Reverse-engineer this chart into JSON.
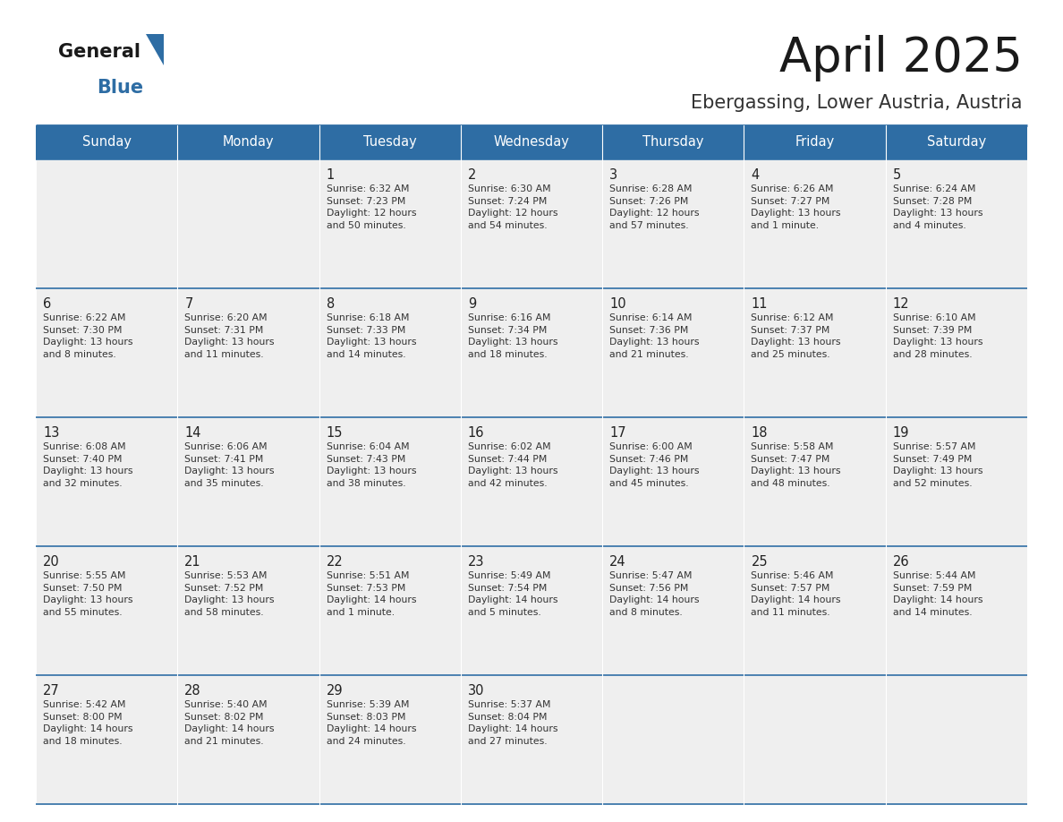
{
  "title": "April 2025",
  "subtitle": "Ebergassing, Lower Austria, Austria",
  "header_bg": "#2E6DA4",
  "header_text": "#FFFFFF",
  "cell_bg_light": "#EFEFEF",
  "text_color": "#333333",
  "line_color": "#2E6DA4",
  "day_headers": [
    "Sunday",
    "Monday",
    "Tuesday",
    "Wednesday",
    "Thursday",
    "Friday",
    "Saturday"
  ],
  "calendar": [
    [
      {
        "day": "",
        "info": ""
      },
      {
        "day": "",
        "info": ""
      },
      {
        "day": "1",
        "info": "Sunrise: 6:32 AM\nSunset: 7:23 PM\nDaylight: 12 hours\nand 50 minutes."
      },
      {
        "day": "2",
        "info": "Sunrise: 6:30 AM\nSunset: 7:24 PM\nDaylight: 12 hours\nand 54 minutes."
      },
      {
        "day": "3",
        "info": "Sunrise: 6:28 AM\nSunset: 7:26 PM\nDaylight: 12 hours\nand 57 minutes."
      },
      {
        "day": "4",
        "info": "Sunrise: 6:26 AM\nSunset: 7:27 PM\nDaylight: 13 hours\nand 1 minute."
      },
      {
        "day": "5",
        "info": "Sunrise: 6:24 AM\nSunset: 7:28 PM\nDaylight: 13 hours\nand 4 minutes."
      }
    ],
    [
      {
        "day": "6",
        "info": "Sunrise: 6:22 AM\nSunset: 7:30 PM\nDaylight: 13 hours\nand 8 minutes."
      },
      {
        "day": "7",
        "info": "Sunrise: 6:20 AM\nSunset: 7:31 PM\nDaylight: 13 hours\nand 11 minutes."
      },
      {
        "day": "8",
        "info": "Sunrise: 6:18 AM\nSunset: 7:33 PM\nDaylight: 13 hours\nand 14 minutes."
      },
      {
        "day": "9",
        "info": "Sunrise: 6:16 AM\nSunset: 7:34 PM\nDaylight: 13 hours\nand 18 minutes."
      },
      {
        "day": "10",
        "info": "Sunrise: 6:14 AM\nSunset: 7:36 PM\nDaylight: 13 hours\nand 21 minutes."
      },
      {
        "day": "11",
        "info": "Sunrise: 6:12 AM\nSunset: 7:37 PM\nDaylight: 13 hours\nand 25 minutes."
      },
      {
        "day": "12",
        "info": "Sunrise: 6:10 AM\nSunset: 7:39 PM\nDaylight: 13 hours\nand 28 minutes."
      }
    ],
    [
      {
        "day": "13",
        "info": "Sunrise: 6:08 AM\nSunset: 7:40 PM\nDaylight: 13 hours\nand 32 minutes."
      },
      {
        "day": "14",
        "info": "Sunrise: 6:06 AM\nSunset: 7:41 PM\nDaylight: 13 hours\nand 35 minutes."
      },
      {
        "day": "15",
        "info": "Sunrise: 6:04 AM\nSunset: 7:43 PM\nDaylight: 13 hours\nand 38 minutes."
      },
      {
        "day": "16",
        "info": "Sunrise: 6:02 AM\nSunset: 7:44 PM\nDaylight: 13 hours\nand 42 minutes."
      },
      {
        "day": "17",
        "info": "Sunrise: 6:00 AM\nSunset: 7:46 PM\nDaylight: 13 hours\nand 45 minutes."
      },
      {
        "day": "18",
        "info": "Sunrise: 5:58 AM\nSunset: 7:47 PM\nDaylight: 13 hours\nand 48 minutes."
      },
      {
        "day": "19",
        "info": "Sunrise: 5:57 AM\nSunset: 7:49 PM\nDaylight: 13 hours\nand 52 minutes."
      }
    ],
    [
      {
        "day": "20",
        "info": "Sunrise: 5:55 AM\nSunset: 7:50 PM\nDaylight: 13 hours\nand 55 minutes."
      },
      {
        "day": "21",
        "info": "Sunrise: 5:53 AM\nSunset: 7:52 PM\nDaylight: 13 hours\nand 58 minutes."
      },
      {
        "day": "22",
        "info": "Sunrise: 5:51 AM\nSunset: 7:53 PM\nDaylight: 14 hours\nand 1 minute."
      },
      {
        "day": "23",
        "info": "Sunrise: 5:49 AM\nSunset: 7:54 PM\nDaylight: 14 hours\nand 5 minutes."
      },
      {
        "day": "24",
        "info": "Sunrise: 5:47 AM\nSunset: 7:56 PM\nDaylight: 14 hours\nand 8 minutes."
      },
      {
        "day": "25",
        "info": "Sunrise: 5:46 AM\nSunset: 7:57 PM\nDaylight: 14 hours\nand 11 minutes."
      },
      {
        "day": "26",
        "info": "Sunrise: 5:44 AM\nSunset: 7:59 PM\nDaylight: 14 hours\nand 14 minutes."
      }
    ],
    [
      {
        "day": "27",
        "info": "Sunrise: 5:42 AM\nSunset: 8:00 PM\nDaylight: 14 hours\nand 18 minutes."
      },
      {
        "day": "28",
        "info": "Sunrise: 5:40 AM\nSunset: 8:02 PM\nDaylight: 14 hours\nand 21 minutes."
      },
      {
        "day": "29",
        "info": "Sunrise: 5:39 AM\nSunset: 8:03 PM\nDaylight: 14 hours\nand 24 minutes."
      },
      {
        "day": "30",
        "info": "Sunrise: 5:37 AM\nSunset: 8:04 PM\nDaylight: 14 hours\nand 27 minutes."
      },
      {
        "day": "",
        "info": ""
      },
      {
        "day": "",
        "info": ""
      },
      {
        "day": "",
        "info": ""
      }
    ]
  ],
  "fig_width": 11.88,
  "fig_height": 9.18,
  "dpi": 100
}
